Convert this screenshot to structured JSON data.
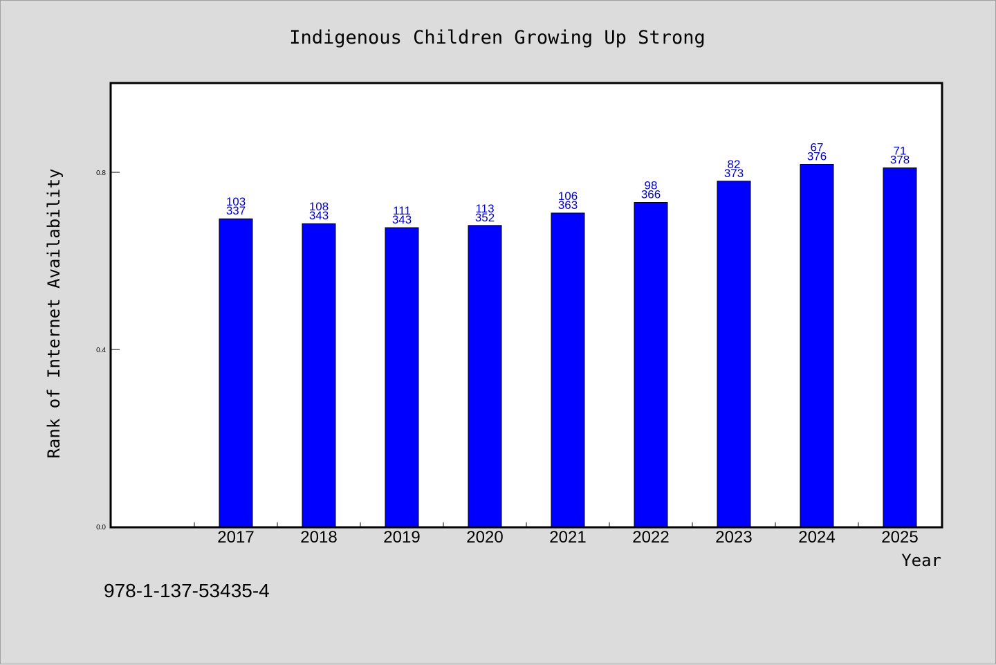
{
  "chart_data": {
    "type": "bar",
    "title": "Indigenous Children Growing Up Strong",
    "xlabel": "Year",
    "ylabel": "Rank of Internet Availability",
    "ylim": [
      0,
      1.0
    ],
    "yticks": [
      "0.0",
      "0.4",
      "0.8"
    ],
    "ytick_values": [
      0.0,
      0.4,
      0.8
    ],
    "categories": [
      "2017",
      "2018",
      "2019",
      "2020",
      "2021",
      "2022",
      "2023",
      "2024",
      "2025"
    ],
    "values": [
      0.695,
      0.684,
      0.675,
      0.68,
      0.708,
      0.732,
      0.78,
      0.818,
      0.81
    ],
    "label_top": [
      "103",
      "108",
      "111",
      "113",
      "106",
      "98",
      "82",
      "67",
      "71"
    ],
    "label_bottom": [
      "337",
      "343",
      "343",
      "352",
      "363",
      "366",
      "373",
      "376",
      "378"
    ],
    "bar_color": "#0000ff",
    "label_color": "#0000cc",
    "background_color": "#dcdcdc",
    "plot_background": "#ffffff",
    "grid": false
  },
  "footer_text": "978-1-137-53435-4"
}
